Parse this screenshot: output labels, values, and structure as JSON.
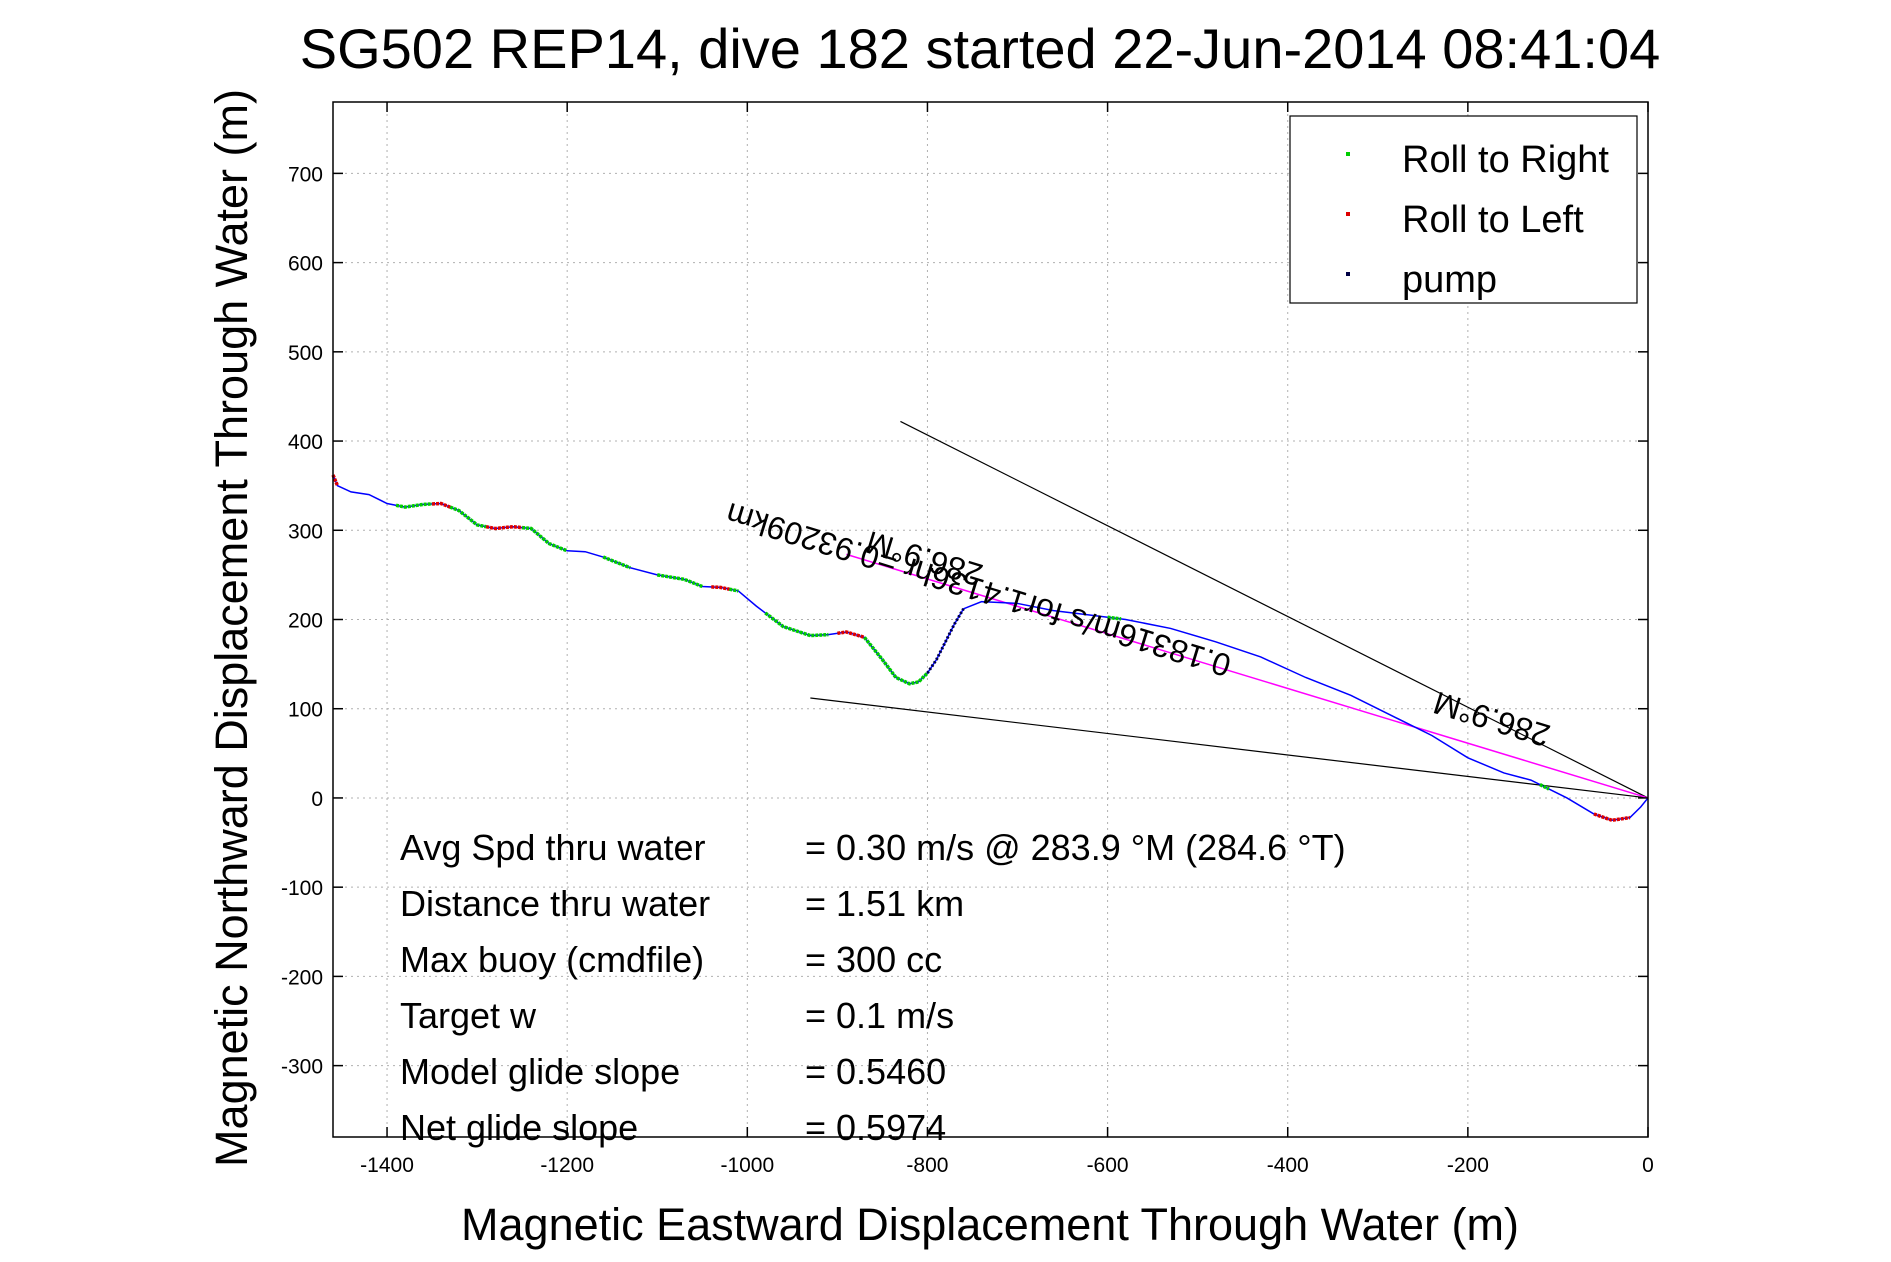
{
  "chart_data": {
    "type": "line",
    "title": "SG502 REP14, dive 182 started 22-Jun-2014 08:41:04",
    "xlabel": "Magnetic Eastward Displacement Through Water (m)",
    "ylabel": "Magnetic Northward Displacement Through Water (m)",
    "xlim": [
      -1460,
      0
    ],
    "ylim": [
      -380,
      780
    ],
    "xticks": [
      -1400,
      -1200,
      -1000,
      -800,
      -600,
      -400,
      -200,
      0
    ],
    "yticks": [
      -300,
      -200,
      -100,
      0,
      100,
      200,
      300,
      400,
      500,
      600,
      700
    ],
    "grid": true,
    "legend_position": "top-right",
    "legend": [
      {
        "label": "Roll to Right",
        "color": "#00cc00"
      },
      {
        "label": "Roll to Left",
        "color": "#dd0000"
      },
      {
        "label": "pump",
        "color": "#000044"
      }
    ],
    "colors": {
      "track": "#0000ff",
      "roll_right": "#00cc00",
      "roll_left": "#dd0000",
      "pump": "#000044",
      "heading_line": "#ff00ff",
      "cone": "#000000"
    },
    "track": {
      "x": [
        0,
        -8,
        -20,
        -40,
        -60,
        -90,
        -130,
        -160,
        -200,
        -240,
        -280,
        -330,
        -380,
        -430,
        -480,
        -530,
        -580,
        -620,
        -660,
        -700,
        -740,
        -760,
        -770,
        -780,
        -790,
        -800,
        -810,
        -820,
        -835,
        -850,
        -870,
        -890,
        -910,
        -930,
        -960,
        -990,
        -1010,
        -1030,
        -1050,
        -1070,
        -1100,
        -1130,
        -1160,
        -1180,
        -1200,
        -1220,
        -1240,
        -1260,
        -1280,
        -1300,
        -1320,
        -1340,
        -1360,
        -1380,
        -1400,
        -1420,
        -1440,
        -1455,
        -1460
      ],
      "y": [
        0,
        -10,
        -22,
        -25,
        -18,
        0,
        20,
        28,
        45,
        70,
        90,
        115,
        135,
        158,
        175,
        190,
        200,
        205,
        210,
        218,
        220,
        212,
        195,
        175,
        155,
        140,
        130,
        128,
        135,
        155,
        180,
        186,
        183,
        182,
        192,
        215,
        232,
        236,
        237,
        245,
        250,
        258,
        270,
        276,
        277,
        285,
        302,
        304,
        302,
        306,
        322,
        330,
        329,
        326,
        330,
        340,
        343,
        350,
        362
      ]
    },
    "roll_right_segments": [
      [
        -1390,
        -1350
      ],
      [
        -1330,
        -1290
      ],
      [
        -1250,
        -1200
      ],
      [
        -1160,
        -1130
      ],
      [
        -1100,
        -1050
      ],
      [
        -1020,
        -1010
      ],
      [
        -980,
        -910
      ],
      [
        -870,
        -800
      ],
      [
        -600,
        -585
      ],
      [
        -120,
        -110
      ]
    ],
    "roll_left_segments": [
      [
        -1460,
        -1455
      ],
      [
        -1350,
        -1330
      ],
      [
        -1290,
        -1250
      ],
      [
        -1040,
        -1020
      ],
      [
        -900,
        -870
      ],
      [
        -60,
        -20
      ]
    ],
    "pump_segments": [
      [
        -800,
        -760
      ]
    ],
    "heading_line": {
      "x": [
        0,
        -890
      ],
      "y": [
        0,
        273
      ]
    },
    "cone_lines": [
      {
        "x": [
          0,
          -830
        ],
        "y": [
          0,
          422
        ]
      },
      {
        "x": [
          0,
          -930
        ],
        "y": [
          0,
          112
        ]
      }
    ],
    "annotations": [
      {
        "text": "286.9°M",
        "x": -800,
        "y": 280,
        "rotation_deg": 197
      },
      {
        "text": "286.9°M",
        "x": -170,
        "y": 100,
        "rotation_deg": 197
      },
      {
        "text": "0.18316m/s for1.4136hr =0.93209km",
        "x": -740,
        "y": 245,
        "rotation_deg": 197
      }
    ],
    "stats": [
      {
        "label": "Avg Spd thru water",
        "value": "=  0.30 m/s @ 283.9 °M (284.6 °T)"
      },
      {
        "label": "Distance thru water",
        "value": "=  1.51 km"
      },
      {
        "label": "Max buoy (cmdfile)",
        "value": "= 300 cc"
      },
      {
        "label": "Target w",
        "value": "= 0.1 m/s"
      },
      {
        "label": "Model glide slope",
        "value": "= 0.5460"
      },
      {
        "label": "Net glide slope",
        "value": "= 0.5974"
      }
    ]
  }
}
